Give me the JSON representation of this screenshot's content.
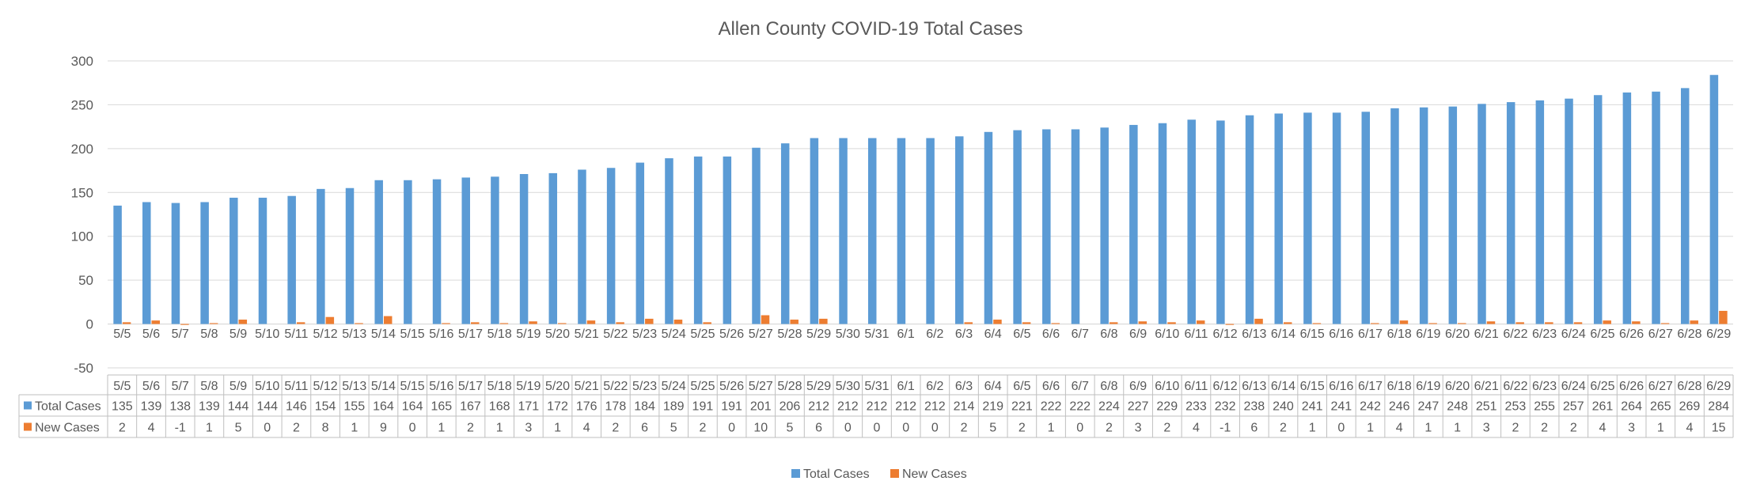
{
  "chart_data": {
    "type": "bar",
    "title": "Allen County COVID-19 Total Cases",
    "xlabel": "",
    "ylabel": "",
    "ylim": [
      -50,
      300
    ],
    "yticks": [
      -50,
      0,
      50,
      100,
      150,
      200,
      250,
      300
    ],
    "grid": true,
    "legend": "bottom",
    "has_data_table": true,
    "categories": [
      "5/5",
      "5/6",
      "5/7",
      "5/8",
      "5/9",
      "5/10",
      "5/11",
      "5/12",
      "5/13",
      "5/14",
      "5/15",
      "5/16",
      "5/17",
      "5/18",
      "5/19",
      "5/20",
      "5/21",
      "5/22",
      "5/23",
      "5/24",
      "5/25",
      "5/26",
      "5/27",
      "5/28",
      "5/29",
      "5/30",
      "5/31",
      "6/1",
      "6/2",
      "6/3",
      "6/4",
      "6/5",
      "6/6",
      "6/7",
      "6/8",
      "6/9",
      "6/10",
      "6/11",
      "6/12",
      "6/13",
      "6/14",
      "6/15",
      "6/16",
      "6/17",
      "6/18",
      "6/19",
      "6/20",
      "6/21",
      "6/22",
      "6/23",
      "6/24",
      "6/25",
      "6/26",
      "6/27",
      "6/28",
      "6/29"
    ],
    "series": [
      {
        "name": "Total Cases",
        "color": "#5B9BD5",
        "values": [
          135,
          139,
          138,
          139,
          144,
          144,
          146,
          154,
          155,
          164,
          164,
          165,
          167,
          168,
          171,
          172,
          176,
          178,
          184,
          189,
          191,
          191,
          201,
          206,
          212,
          212,
          212,
          212,
          212,
          214,
          219,
          221,
          222,
          222,
          224,
          227,
          229,
          233,
          232,
          238,
          240,
          241,
          241,
          242,
          246,
          247,
          248,
          251,
          253,
          255,
          257,
          261,
          264,
          265,
          269,
          284
        ]
      },
      {
        "name": "New Cases",
        "color": "#ED7D31",
        "values": [
          2,
          4,
          -1,
          1,
          5,
          0,
          2,
          8,
          1,
          9,
          0,
          1,
          2,
          1,
          3,
          1,
          4,
          2,
          6,
          5,
          2,
          0,
          10,
          5,
          6,
          0,
          0,
          0,
          0,
          2,
          5,
          2,
          1,
          0,
          2,
          3,
          2,
          4,
          -1,
          6,
          2,
          1,
          0,
          1,
          4,
          1,
          1,
          3,
          2,
          2,
          2,
          4,
          3,
          1,
          4,
          15
        ]
      }
    ]
  }
}
